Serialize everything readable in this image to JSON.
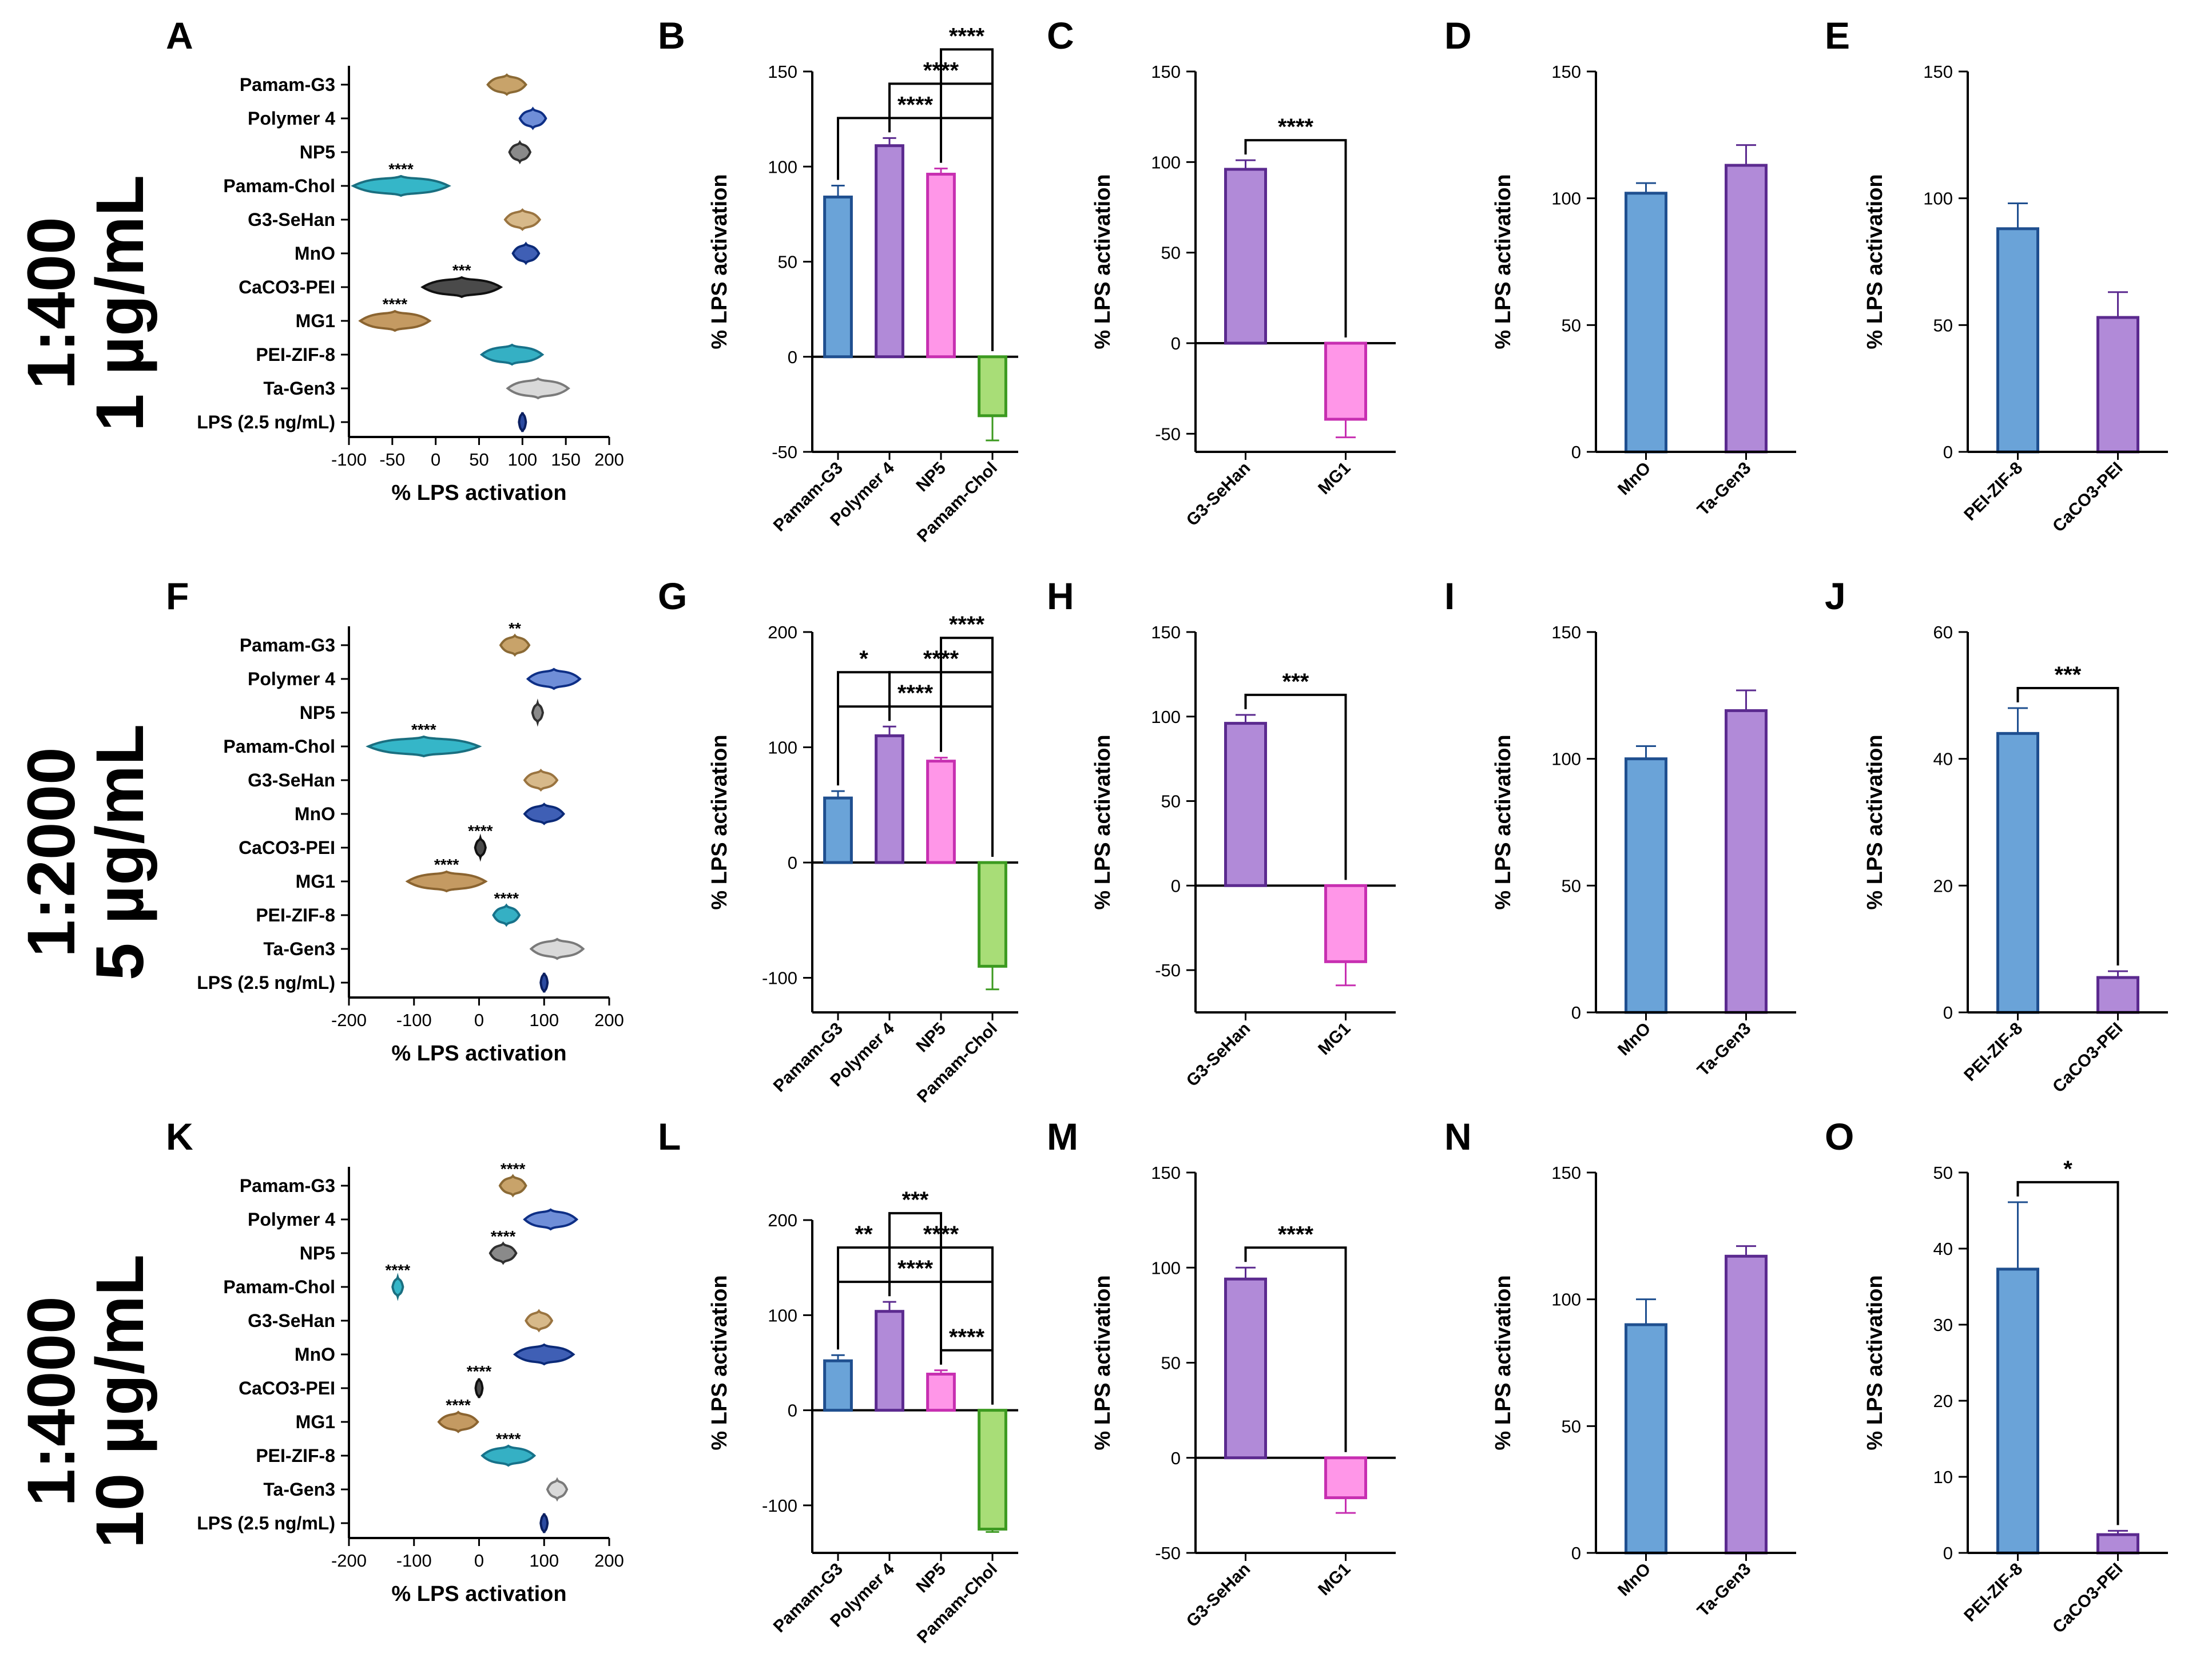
{
  "figure": {
    "rows": [
      {
        "label_line1": "1:400",
        "label_line2": "1 µg/mL"
      },
      {
        "label_line1": "1:2000",
        "label_line2": "5 µg/mL"
      },
      {
        "label_line1": "1:4000",
        "label_line2": "10 µg/mL"
      }
    ]
  },
  "colors": {
    "Pamam-G3": {
      "fill": "#c8a36a",
      "stroke": "#8b6a35"
    },
    "Polymer 4": {
      "fill": "#6f8ed8",
      "stroke": "#0e2f86"
    },
    "NP5": {
      "fill": "#8a8a8a",
      "stroke": "#303030"
    },
    "Pamam-Chol": {
      "fill": "#35b6c8",
      "stroke": "#1a6f80"
    },
    "G3-SeHan": {
      "fill": "#d7b98a",
      "stroke": "#9a7440"
    },
    "MnO": {
      "fill": "#3f5fb5",
      "stroke": "#0b2a78"
    },
    "CaCO3-PEI": {
      "fill": "#4a4a4a",
      "stroke": "#111111"
    },
    "MG1": {
      "fill": "#c49a62",
      "stroke": "#8b6430"
    },
    "PEI-ZIF-8": {
      "fill": "#35b0c4",
      "stroke": "#17728a"
    },
    "Ta-Gen3": {
      "fill": "#d9d9d9",
      "stroke": "#7a7a7a"
    },
    "LPS (2.5 ng/mL)": {
      "fill": "#2b4aa0",
      "stroke": "#0b1f60"
    },
    "bar_blue": {
      "fill": "#6aa3d8",
      "stroke": "#1f4f8f"
    },
    "bar_purple": {
      "fill": "#b18ad8",
      "stroke": "#5b2a8f"
    },
    "bar_pink": {
      "fill": "#ff96e8",
      "stroke": "#c72fb1"
    },
    "bar_green": {
      "fill": "#a8dd77",
      "stroke": "#3c9a20"
    }
  },
  "chart_data": [
    {
      "panel": "A",
      "type": "violin",
      "xlabel": "% LPS activation",
      "xlim": [
        -100,
        200
      ],
      "xticks": [
        -100,
        -50,
        0,
        50,
        100,
        150,
        200
      ],
      "categories": [
        "Pamam-G3",
        "Polymer 4",
        "NP5",
        "Pamam-Chol",
        "G3-SeHan",
        "MnO",
        "CaCO3-PEI",
        "MG1",
        "PEI-ZIF-8",
        "Ta-Gen3",
        "LPS (2.5 ng/mL)"
      ],
      "centers": [
        82,
        112,
        97,
        -40,
        100,
        104,
        30,
        -47,
        88,
        118,
        100
      ],
      "spreads": [
        22,
        15,
        12,
        55,
        20,
        15,
        45,
        40,
        35,
        35,
        3
      ],
      "sig": [
        "",
        "",
        "",
        "****",
        "",
        "",
        "***",
        "****",
        "",
        "",
        ""
      ]
    },
    {
      "panel": "B",
      "type": "bar",
      "ylabel": "% LPS activation",
      "ylim": [
        -50,
        150
      ],
      "yticks": [
        -50,
        0,
        50,
        100,
        150
      ],
      "categories": [
        "Pamam-G3",
        "Polymer 4",
        "NP5",
        "Pamam-Chol"
      ],
      "values": [
        84,
        111,
        96,
        -31
      ],
      "errors": [
        6,
        4,
        3,
        13
      ],
      "colors": [
        "bar_blue",
        "bar_purple",
        "bar_pink",
        "bar_green"
      ],
      "brackets": [
        {
          "from": 0,
          "to": 3,
          "label": "****"
        },
        {
          "from": 1,
          "to": 3,
          "label": "****"
        },
        {
          "from": 2,
          "to": 3,
          "label": "****"
        }
      ]
    },
    {
      "panel": "C",
      "type": "bar",
      "ylabel": "% LPS activation",
      "ylim": [
        -60,
        150
      ],
      "yticks": [
        -50,
        0,
        50,
        100,
        150
      ],
      "categories": [
        "G3-SeHan",
        "MG1"
      ],
      "values": [
        96,
        -42
      ],
      "errors": [
        5,
        10
      ],
      "colors": [
        "bar_purple",
        "bar_pink"
      ],
      "brackets": [
        {
          "from": 0,
          "to": 1,
          "label": "****"
        }
      ]
    },
    {
      "panel": "D",
      "type": "bar",
      "ylabel": "% LPS activation",
      "ylim": [
        0,
        150
      ],
      "yticks": [
        0,
        50,
        100,
        150
      ],
      "categories": [
        "MnO",
        "Ta-Gen3"
      ],
      "values": [
        102,
        113
      ],
      "errors": [
        4,
        8
      ],
      "colors": [
        "bar_blue",
        "bar_purple"
      ],
      "brackets": []
    },
    {
      "panel": "E",
      "type": "bar",
      "ylabel": "% LPS activation",
      "ylim": [
        0,
        150
      ],
      "yticks": [
        0,
        50,
        100,
        150
      ],
      "categories": [
        "PEI-ZIF-8",
        "CaCO3-PEI"
      ],
      "values": [
        88,
        53
      ],
      "errors": [
        10,
        10
      ],
      "colors": [
        "bar_blue",
        "bar_purple"
      ],
      "brackets": []
    },
    {
      "panel": "F",
      "type": "violin",
      "xlabel": "% LPS activation",
      "xlim": [
        -200,
        200
      ],
      "xticks": [
        -200,
        -100,
        0,
        100,
        200
      ],
      "categories": [
        "Pamam-G3",
        "Polymer 4",
        "NP5",
        "Pamam-Chol",
        "G3-SeHan",
        "MnO",
        "CaCO3-PEI",
        "MG1",
        "PEI-ZIF-8",
        "Ta-Gen3",
        "LPS (2.5 ng/mL)"
      ],
      "centers": [
        55,
        115,
        90,
        -85,
        95,
        100,
        2,
        -50,
        42,
        120,
        100
      ],
      "spreads": [
        22,
        40,
        8,
        85,
        25,
        30,
        8,
        60,
        20,
        40,
        3
      ],
      "sig": [
        "**",
        "",
        "",
        "****",
        "",
        "",
        "****",
        "****",
        "****",
        "",
        ""
      ]
    },
    {
      "panel": "G",
      "type": "bar",
      "ylabel": "% LPS activation",
      "ylim": [
        -130,
        200
      ],
      "yticks": [
        -100,
        0,
        100,
        200
      ],
      "categories": [
        "Pamam-G3",
        "Polymer 4",
        "NP5",
        "Pamam-Chol"
      ],
      "values": [
        56,
        110,
        88,
        -90
      ],
      "errors": [
        6,
        8,
        3,
        20
      ],
      "colors": [
        "bar_blue",
        "bar_purple",
        "bar_pink",
        "bar_green"
      ],
      "brackets": [
        {
          "from": 0,
          "to": 3,
          "label": "****"
        },
        {
          "from": 0,
          "to": 1,
          "label": "*"
        },
        {
          "from": 1,
          "to": 3,
          "label": "****"
        },
        {
          "from": 2,
          "to": 3,
          "label": "****"
        }
      ]
    },
    {
      "panel": "H",
      "type": "bar",
      "ylabel": "% LPS activation",
      "ylim": [
        -75,
        150
      ],
      "yticks": [
        -50,
        0,
        50,
        100,
        150
      ],
      "categories": [
        "G3-SeHan",
        "MG1"
      ],
      "values": [
        96,
        -45
      ],
      "errors": [
        5,
        14
      ],
      "colors": [
        "bar_purple",
        "bar_pink"
      ],
      "brackets": [
        {
          "from": 0,
          "to": 1,
          "label": "***"
        }
      ]
    },
    {
      "panel": "I",
      "type": "bar",
      "ylabel": "% LPS activation",
      "ylim": [
        0,
        150
      ],
      "yticks": [
        0,
        50,
        100,
        150
      ],
      "categories": [
        "MnO",
        "Ta-Gen3"
      ],
      "values": [
        100,
        119
      ],
      "errors": [
        5,
        8
      ],
      "colors": [
        "bar_blue",
        "bar_purple"
      ],
      "brackets": []
    },
    {
      "panel": "J",
      "type": "bar",
      "ylabel": "% LPS activation",
      "ylim": [
        0,
        60
      ],
      "yticks": [
        0,
        20,
        40,
        60
      ],
      "categories": [
        "PEI-ZIF-8",
        "CaCO3-PEI"
      ],
      "values": [
        44,
        5.5
      ],
      "errors": [
        4,
        1
      ],
      "colors": [
        "bar_blue",
        "bar_purple"
      ],
      "brackets": [
        {
          "from": 0,
          "to": 1,
          "label": "***"
        }
      ]
    },
    {
      "panel": "K",
      "type": "violin",
      "xlabel": "% LPS activation",
      "xlim": [
        -200,
        200
      ],
      "xticks": [
        -200,
        -100,
        0,
        100,
        200
      ],
      "categories": [
        "Pamam-G3",
        "Polymer 4",
        "NP5",
        "Pamam-Chol",
        "G3-SeHan",
        "MnO",
        "CaCO3-PEI",
        "MG1",
        "PEI-ZIF-8",
        "Ta-Gen3",
        "LPS (2.5 ng/mL)"
      ],
      "centers": [
        52,
        110,
        37,
        -125,
        92,
        100,
        0,
        -32,
        45,
        120,
        100
      ],
      "spreads": [
        20,
        40,
        20,
        8,
        20,
        45,
        4,
        30,
        40,
        15,
        3
      ],
      "sig": [
        "****",
        "",
        "****",
        "****",
        "",
        "",
        "****",
        "****",
        "****",
        "",
        ""
      ]
    },
    {
      "panel": "L",
      "type": "bar",
      "ylabel": "% LPS activation",
      "ylim": [
        -150,
        250
      ],
      "yticks": [
        -100,
        0,
        100,
        200
      ],
      "categories": [
        "Pamam-G3",
        "Polymer 4",
        "NP5",
        "Pamam-Chol"
      ],
      "values": [
        52,
        104,
        38,
        -125
      ],
      "errors": [
        6,
        10,
        4,
        3
      ],
      "colors": [
        "bar_blue",
        "bar_purple",
        "bar_pink",
        "bar_green"
      ],
      "brackets": [
        {
          "from": 0,
          "to": 3,
          "label": "****"
        },
        {
          "from": 1,
          "to": 3,
          "label": "****"
        },
        {
          "from": 0,
          "to": 1,
          "label": "**"
        },
        {
          "from": 1,
          "to": 2,
          "label": "***"
        },
        {
          "from": 2,
          "to": 3,
          "label": "****"
        }
      ]
    },
    {
      "panel": "M",
      "type": "bar",
      "ylabel": "% LPS activation",
      "ylim": [
        -50,
        150
      ],
      "yticks": [
        -50,
        0,
        50,
        100,
        150
      ],
      "categories": [
        "G3-SeHan",
        "MG1"
      ],
      "values": [
        94,
        -21
      ],
      "errors": [
        6,
        8
      ],
      "colors": [
        "bar_purple",
        "bar_pink"
      ],
      "brackets": [
        {
          "from": 0,
          "to": 1,
          "label": "****"
        }
      ]
    },
    {
      "panel": "N",
      "type": "bar",
      "ylabel": "% LPS activation",
      "ylim": [
        0,
        150
      ],
      "yticks": [
        0,
        50,
        100,
        150
      ],
      "categories": [
        "MnO",
        "Ta-Gen3"
      ],
      "values": [
        90,
        117
      ],
      "errors": [
        10,
        4
      ],
      "colors": [
        "bar_blue",
        "bar_purple"
      ],
      "brackets": []
    },
    {
      "panel": "O",
      "type": "bar",
      "ylabel": "% LPS activation",
      "ylim": [
        0,
        50
      ],
      "yticks": [
        0,
        10,
        20,
        30,
        40,
        50
      ],
      "categories": [
        "PEI-ZIF-8",
        "CaCO3-PEI"
      ],
      "values": [
        37.3,
        2.4
      ],
      "errors": [
        8.8,
        0.5
      ],
      "colors": [
        "bar_blue",
        "bar_purple"
      ],
      "brackets": [
        {
          "from": 0,
          "to": 1,
          "label": "*"
        }
      ]
    }
  ]
}
